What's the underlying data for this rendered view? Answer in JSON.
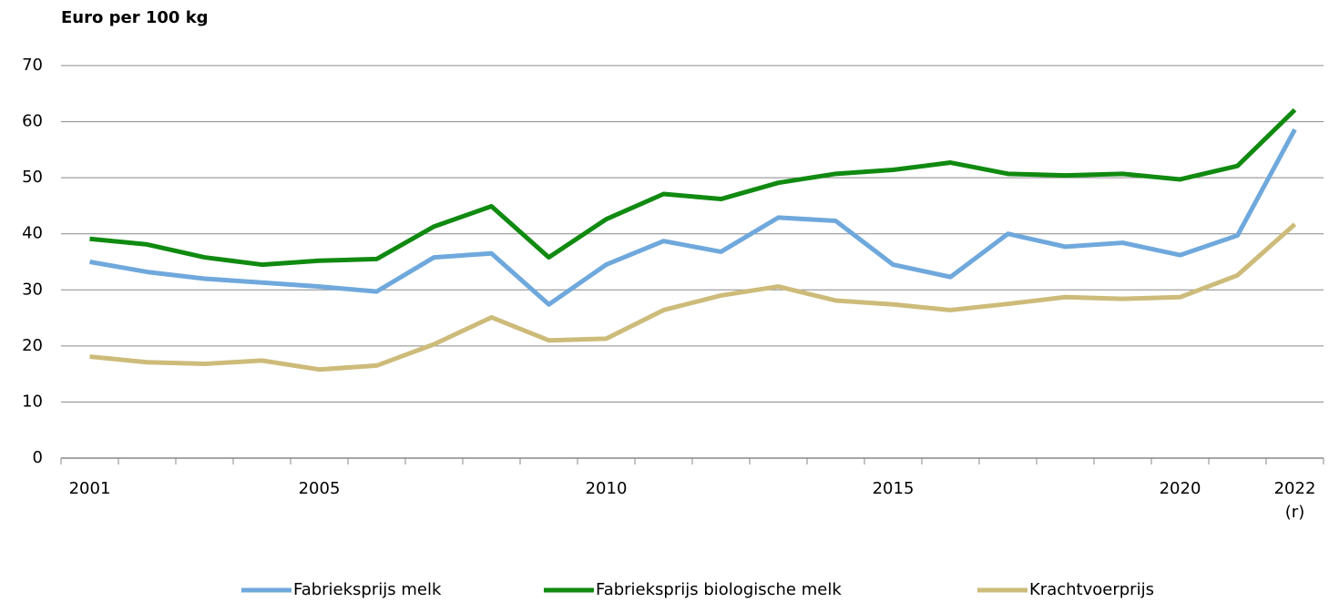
{
  "chart_data": {
    "type": "line",
    "title": "Euro per 100 kg",
    "categories": [
      "2001",
      null,
      null,
      null,
      "2005",
      null,
      null,
      null,
      null,
      "2010",
      null,
      null,
      null,
      null,
      "2015",
      null,
      null,
      null,
      null,
      "2020",
      null,
      "2022 (r)"
    ],
    "series": [
      {
        "name": "Fabrieksprijs melk",
        "color": "#6fa8dc",
        "values": [
          35,
          33.2,
          32,
          31.3,
          30.6,
          29.7,
          35.8,
          36.5,
          27.4,
          34.5,
          38.7,
          36.8,
          42.9,
          42.3,
          34.5,
          32.3,
          40,
          37.7,
          38.4,
          36.2,
          39.7,
          58.6
        ]
      },
      {
        "name": "Fabrieksprijs biologische melk",
        "color": "#108a10",
        "values": [
          39.1,
          38.1,
          35.8,
          34.5,
          35.2,
          35.5,
          41.3,
          44.9,
          35.8,
          42.6,
          47.1,
          46.2,
          49.1,
          50.7,
          51.4,
          52.7,
          50.7,
          50.4,
          50.7,
          49.7,
          52.1,
          62.1
        ]
      },
      {
        "name": "Krachtvoerprijs",
        "color": "#cdbb7a",
        "values": [
          18.1,
          17.1,
          16.8,
          17.4,
          15.8,
          16.5,
          20.3,
          25.1,
          21,
          21.3,
          26.4,
          29,
          30.6,
          28.1,
          27.4,
          26.4,
          27.5,
          28.7,
          28.4,
          28.7,
          32.6,
          41.7
        ]
      }
    ],
    "ylim": [
      0,
      70
    ],
    "yticks": [
      0,
      10,
      20,
      30,
      40,
      50,
      60,
      70
    ],
    "grid": true,
    "legend": "bottom"
  }
}
